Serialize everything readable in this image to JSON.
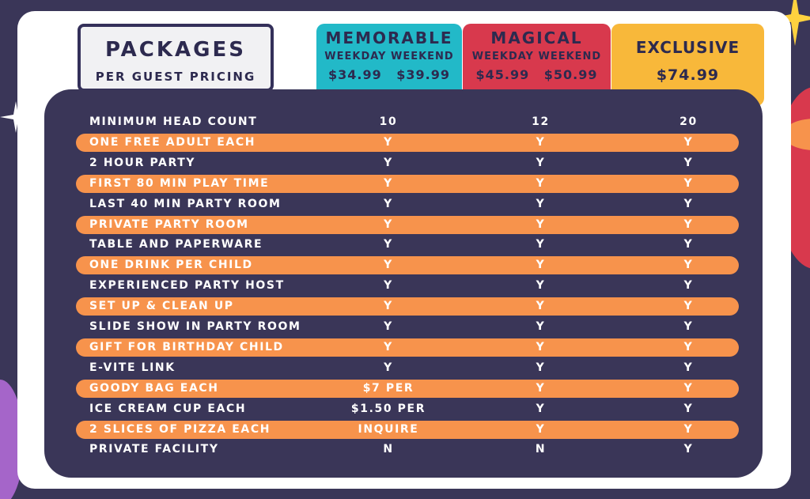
{
  "header": {
    "title": "PACKAGES",
    "subtitle": "PER GUEST PRICING"
  },
  "packages": [
    {
      "name": "MEMORABLE",
      "days": "WEEKDAY WEEKEND",
      "prices": "$34.99 $39.99",
      "color": "#22b9c8"
    },
    {
      "name": "MAGICAL",
      "days": "WEEKDAY WEEKEND",
      "prices": "$45.99 $50.99",
      "color": "#d8394d"
    },
    {
      "name": "EXCLUSIVE",
      "price": "$74.99",
      "color": "#f8b83a"
    }
  ],
  "table": {
    "rows": [
      {
        "feature": "MINIMUM HEAD COUNT",
        "memorable": "10",
        "magical": "12",
        "exclusive": "20"
      },
      {
        "feature": "ONE FREE ADULT EACH",
        "memorable": "Y",
        "magical": "Y",
        "exclusive": "Y"
      },
      {
        "feature": "2 HOUR PARTY",
        "memorable": "Y",
        "magical": "Y",
        "exclusive": "Y"
      },
      {
        "feature": "FIRST 80 MIN PLAY TIME",
        "memorable": "Y",
        "magical": "Y",
        "exclusive": "Y"
      },
      {
        "feature": "LAST 40 MIN PARTY ROOM",
        "memorable": "Y",
        "magical": "Y",
        "exclusive": "Y"
      },
      {
        "feature": "PRIVATE PARTY ROOM",
        "memorable": "Y",
        "magical": "Y",
        "exclusive": "Y"
      },
      {
        "feature": "TABLE AND PAPERWARE",
        "memorable": "Y",
        "magical": "Y",
        "exclusive": "Y"
      },
      {
        "feature": "ONE DRINK PER CHILD",
        "memorable": "Y",
        "magical": "Y",
        "exclusive": "Y"
      },
      {
        "feature": "EXPERIENCED PARTY HOST",
        "memorable": "Y",
        "magical": "Y",
        "exclusive": "Y"
      },
      {
        "feature": "SET UP & CLEAN UP",
        "memorable": "Y",
        "magical": "Y",
        "exclusive": "Y"
      },
      {
        "feature": "SLIDE SHOW IN PARTY ROOM",
        "memorable": "Y",
        "magical": "Y",
        "exclusive": "Y"
      },
      {
        "feature": "GIFT FOR BIRTHDAY CHILD",
        "memorable": "Y",
        "magical": "Y",
        "exclusive": "Y"
      },
      {
        "feature": "E-VITE LINK",
        "memorable": "Y",
        "magical": "Y",
        "exclusive": "Y"
      },
      {
        "feature": "GOODY BAG EACH",
        "memorable": "$7 PER",
        "magical": "Y",
        "exclusive": "Y"
      },
      {
        "feature": "ICE CREAM CUP EACH",
        "memorable": "$1.50 PER",
        "magical": "Y",
        "exclusive": "Y"
      },
      {
        "feature": "2 SLICES OF PIZZA EACH",
        "memorable": "INQUIRE",
        "magical": "Y",
        "exclusive": "Y"
      },
      {
        "feature": "PRIVATE FACILITY",
        "memorable": "N",
        "magical": "N",
        "exclusive": "Y"
      }
    ]
  },
  "colors": {
    "background": "#3a3658",
    "card": "#ffffff",
    "highlight_row": "#f7934c",
    "text_dark": "#2d2a4f",
    "text_light": "#ffffff"
  },
  "decorations": [
    "sparkle-icon",
    "planet-icon"
  ]
}
